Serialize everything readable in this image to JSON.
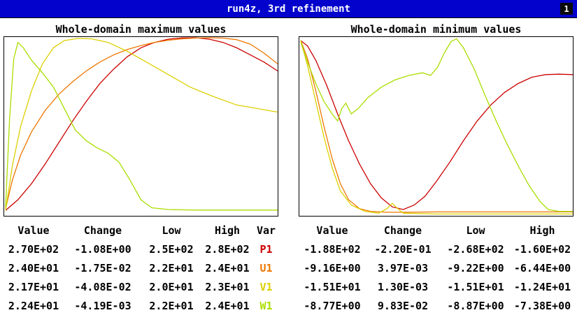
{
  "titlebar": {
    "title": "run4z, 3rd refinement",
    "page_indicator": "1",
    "bg_color": "#0202cc"
  },
  "variables": [
    {
      "name": "P1",
      "color": "#cc0000"
    },
    {
      "name": "U1",
      "color": "#ee7700"
    },
    {
      "name": "V1",
      "color": "#ddd000"
    },
    {
      "name": "W1",
      "color": "#aade00"
    }
  ],
  "charts": [
    {
      "id": "max",
      "title": "Whole-domain maximum values",
      "table": {
        "headers": [
          "Value",
          "Change",
          "Low",
          "High",
          "Var"
        ],
        "var_column": 4,
        "rows": [
          [
            "2.70E+02",
            "-1.08E+00",
            "2.5E+02",
            "2.8E+02",
            "P1"
          ],
          [
            "2.40E+01",
            "-1.75E-02",
            "2.2E+01",
            "2.4E+01",
            "U1"
          ],
          [
            "2.17E+01",
            "-4.08E-02",
            "2.0E+01",
            "2.3E+01",
            "V1"
          ],
          [
            "2.24E+01",
            "-4.19E-03",
            "2.2E+01",
            "2.4E+01",
            "W1"
          ]
        ]
      },
      "series": [
        {
          "var": "P1",
          "points": [
            [
              0.005,
              0.97
            ],
            [
              0.05,
              0.91
            ],
            [
              0.1,
              0.82
            ],
            [
              0.15,
              0.71
            ],
            [
              0.2,
              0.59
            ],
            [
              0.25,
              0.47
            ],
            [
              0.3,
              0.36
            ],
            [
              0.35,
              0.26
            ],
            [
              0.4,
              0.18
            ],
            [
              0.45,
              0.11
            ],
            [
              0.5,
              0.06
            ],
            [
              0.55,
              0.03
            ],
            [
              0.6,
              0.012
            ],
            [
              0.65,
              0.005
            ],
            [
              0.7,
              0.004
            ],
            [
              0.75,
              0.012
            ],
            [
              0.8,
              0.03
            ],
            [
              0.85,
              0.06
            ],
            [
              0.9,
              0.1
            ],
            [
              0.95,
              0.14
            ],
            [
              1.0,
              0.19
            ]
          ]
        },
        {
          "var": "U1",
          "points": [
            [
              0.005,
              0.96
            ],
            [
              0.03,
              0.8
            ],
            [
              0.06,
              0.66
            ],
            [
              0.1,
              0.53
            ],
            [
              0.15,
              0.41
            ],
            [
              0.2,
              0.32
            ],
            [
              0.25,
              0.25
            ],
            [
              0.3,
              0.19
            ],
            [
              0.35,
              0.14
            ],
            [
              0.4,
              0.1
            ],
            [
              0.45,
              0.07
            ],
            [
              0.5,
              0.048
            ],
            [
              0.55,
              0.03
            ],
            [
              0.6,
              0.018
            ],
            [
              0.65,
              0.01
            ],
            [
              0.7,
              0.006
            ],
            [
              0.75,
              0.004
            ],
            [
              0.8,
              0.006
            ],
            [
              0.85,
              0.015
            ],
            [
              0.9,
              0.04
            ],
            [
              0.95,
              0.09
            ],
            [
              1.0,
              0.15
            ]
          ]
        },
        {
          "var": "V1",
          "points": [
            [
              0.005,
              0.97
            ],
            [
              0.03,
              0.72
            ],
            [
              0.06,
              0.5
            ],
            [
              0.1,
              0.3
            ],
            [
              0.14,
              0.15
            ],
            [
              0.18,
              0.06
            ],
            [
              0.22,
              0.02
            ],
            [
              0.27,
              0.008
            ],
            [
              0.32,
              0.01
            ],
            [
              0.38,
              0.03
            ],
            [
              0.45,
              0.08
            ],
            [
              0.52,
              0.14
            ],
            [
              0.6,
              0.21
            ],
            [
              0.68,
              0.28
            ],
            [
              0.76,
              0.33
            ],
            [
              0.85,
              0.38
            ],
            [
              1.0,
              0.42
            ]
          ]
        },
        {
          "var": "W1",
          "points": [
            [
              0.005,
              0.95
            ],
            [
              0.02,
              0.45
            ],
            [
              0.035,
              0.12
            ],
            [
              0.05,
              0.03
            ],
            [
              0.07,
              0.06
            ],
            [
              0.1,
              0.13
            ],
            [
              0.14,
              0.2
            ],
            [
              0.18,
              0.28
            ],
            [
              0.22,
              0.4
            ],
            [
              0.26,
              0.52
            ],
            [
              0.3,
              0.58
            ],
            [
              0.34,
              0.62
            ],
            [
              0.38,
              0.65
            ],
            [
              0.42,
              0.7
            ],
            [
              0.46,
              0.8
            ],
            [
              0.5,
              0.91
            ],
            [
              0.54,
              0.955
            ],
            [
              0.6,
              0.965
            ],
            [
              0.7,
              0.968
            ],
            [
              0.8,
              0.968
            ],
            [
              0.9,
              0.968
            ],
            [
              1.0,
              0.968
            ]
          ]
        }
      ]
    },
    {
      "id": "min",
      "title": "Whole-domain minimum values",
      "table": {
        "headers": [
          "Value",
          "Change",
          "Low",
          "High"
        ],
        "rows": [
          [
            "-1.88E+02",
            "-2.20E-01",
            "-2.68E+02",
            "-1.60E+02"
          ],
          [
            "-9.16E+00",
            "3.97E-03",
            "-9.22E+00",
            "-6.44E+00"
          ],
          [
            "-1.51E+01",
            "1.30E-03",
            "-1.51E+01",
            "-1.24E+01"
          ],
          [
            "-8.77E+00",
            "9.83E-02",
            "-8.87E+00",
            "-7.38E+00"
          ]
        ]
      },
      "series": [
        {
          "var": "P1",
          "points": [
            [
              0.005,
              0.02
            ],
            [
              0.03,
              0.05
            ],
            [
              0.06,
              0.13
            ],
            [
              0.1,
              0.27
            ],
            [
              0.14,
              0.43
            ],
            [
              0.18,
              0.58
            ],
            [
              0.22,
              0.71
            ],
            [
              0.26,
              0.82
            ],
            [
              0.3,
              0.9
            ],
            [
              0.34,
              0.95
            ],
            [
              0.38,
              0.965
            ],
            [
              0.42,
              0.94
            ],
            [
              0.46,
              0.89
            ],
            [
              0.5,
              0.81
            ],
            [
              0.55,
              0.7
            ],
            [
              0.6,
              0.58
            ],
            [
              0.65,
              0.47
            ],
            [
              0.7,
              0.38
            ],
            [
              0.75,
              0.31
            ],
            [
              0.8,
              0.26
            ],
            [
              0.85,
              0.225
            ],
            [
              0.9,
              0.21
            ],
            [
              0.95,
              0.208
            ],
            [
              1.0,
              0.21
            ]
          ]
        },
        {
          "var": "U1",
          "points": [
            [
              0.005,
              0.02
            ],
            [
              0.03,
              0.12
            ],
            [
              0.06,
              0.3
            ],
            [
              0.09,
              0.5
            ],
            [
              0.12,
              0.68
            ],
            [
              0.15,
              0.82
            ],
            [
              0.18,
              0.91
            ],
            [
              0.22,
              0.96
            ],
            [
              0.26,
              0.975
            ],
            [
              0.32,
              0.98
            ],
            [
              0.4,
              0.98
            ],
            [
              0.5,
              0.978
            ],
            [
              0.6,
              0.978
            ],
            [
              0.7,
              0.978
            ],
            [
              0.8,
              0.978
            ],
            [
              0.9,
              0.978
            ],
            [
              1.0,
              0.978
            ]
          ]
        },
        {
          "var": "V1",
          "points": [
            [
              0.005,
              0.02
            ],
            [
              0.03,
              0.16
            ],
            [
              0.06,
              0.36
            ],
            [
              0.09,
              0.56
            ],
            [
              0.12,
              0.73
            ],
            [
              0.15,
              0.86
            ],
            [
              0.19,
              0.94
            ],
            [
              0.24,
              0.975
            ],
            [
              0.29,
              0.985
            ],
            [
              0.32,
              0.96
            ],
            [
              0.34,
              0.93
            ],
            [
              0.36,
              0.96
            ],
            [
              0.38,
              0.985
            ],
            [
              0.5,
              0.99
            ],
            [
              0.65,
              0.99
            ],
            [
              0.8,
              0.99
            ],
            [
              1.0,
              0.99
            ]
          ]
        },
        {
          "var": "W1",
          "points": [
            [
              0.005,
              0.03
            ],
            [
              0.03,
              0.14
            ],
            [
              0.06,
              0.26
            ],
            [
              0.09,
              0.36
            ],
            [
              0.12,
              0.43
            ],
            [
              0.14,
              0.47
            ],
            [
              0.155,
              0.4
            ],
            [
              0.17,
              0.37
            ],
            [
              0.19,
              0.43
            ],
            [
              0.215,
              0.4
            ],
            [
              0.25,
              0.34
            ],
            [
              0.3,
              0.28
            ],
            [
              0.35,
              0.24
            ],
            [
              0.4,
              0.215
            ],
            [
              0.45,
              0.2
            ],
            [
              0.48,
              0.215
            ],
            [
              0.505,
              0.17
            ],
            [
              0.53,
              0.09
            ],
            [
              0.555,
              0.025
            ],
            [
              0.575,
              0.01
            ],
            [
              0.6,
              0.06
            ],
            [
              0.64,
              0.18
            ],
            [
              0.68,
              0.33
            ],
            [
              0.72,
              0.47
            ],
            [
              0.76,
              0.6
            ],
            [
              0.8,
              0.72
            ],
            [
              0.84,
              0.83
            ],
            [
              0.88,
              0.92
            ],
            [
              0.91,
              0.965
            ],
            [
              0.95,
              0.975
            ],
            [
              1.0,
              0.975
            ]
          ]
        }
      ]
    }
  ]
}
